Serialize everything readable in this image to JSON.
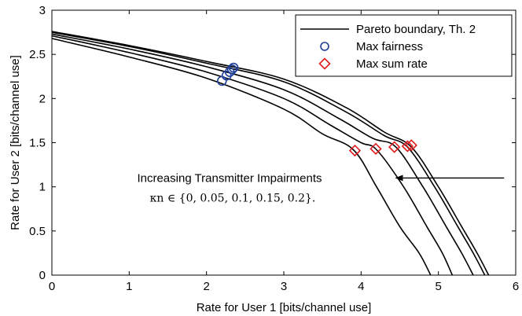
{
  "chart_data": {
    "type": "line",
    "title": "",
    "xlabel": "Rate for User 1 [bits/channel use]",
    "ylabel": "Rate for User 2 [bits/channel use]",
    "xlim": [
      0,
      6
    ],
    "ylim": [
      0,
      3
    ],
    "xticks": [
      0,
      1,
      2,
      3,
      4,
      5,
      6
    ],
    "yticks": [
      0,
      0.5,
      1,
      1.5,
      2,
      2.5,
      3
    ],
    "xtick_labels": [
      "0",
      "1",
      "2",
      "3",
      "4",
      "5",
      "6"
    ],
    "ytick_labels": [
      "0",
      "0.5",
      "1",
      "1.5",
      "2",
      "2.5",
      "3"
    ],
    "grid": false,
    "legend_position": "top-right",
    "legend": [
      {
        "label": "Pareto boundary, Th. 2",
        "marker": "line",
        "color": "#000000"
      },
      {
        "label": "Max fairness",
        "marker": "circle",
        "color": "#1f3f99"
      },
      {
        "label": "Max sum rate",
        "marker": "diamond",
        "color": "#e31a1c"
      }
    ],
    "series": [
      {
        "kappa": 0,
        "points": [
          [
            0,
            2.76
          ],
          [
            1,
            2.6
          ],
          [
            2,
            2.42
          ],
          [
            3,
            2.22
          ],
          [
            3.8,
            1.9
          ],
          [
            4.3,
            1.62
          ],
          [
            4.65,
            1.45
          ],
          [
            5.0,
            1.0
          ],
          [
            5.3,
            0.55
          ],
          [
            5.5,
            0.25
          ],
          [
            5.65,
            0
          ]
        ]
      },
      {
        "kappa": 0.05,
        "points": [
          [
            0,
            2.75
          ],
          [
            1,
            2.59
          ],
          [
            2,
            2.4
          ],
          [
            3,
            2.19
          ],
          [
            3.8,
            1.85
          ],
          [
            4.3,
            1.58
          ],
          [
            4.6,
            1.45
          ],
          [
            4.95,
            1.0
          ],
          [
            5.25,
            0.55
          ],
          [
            5.45,
            0.25
          ],
          [
            5.6,
            0
          ]
        ]
      },
      {
        "kappa": 0.1,
        "points": [
          [
            0,
            2.73
          ],
          [
            1,
            2.56
          ],
          [
            2,
            2.36
          ],
          [
            3,
            2.1
          ],
          [
            3.7,
            1.78
          ],
          [
            4.15,
            1.55
          ],
          [
            4.45,
            1.45
          ],
          [
            4.8,
            1.0
          ],
          [
            5.1,
            0.55
          ],
          [
            5.3,
            0.25
          ],
          [
            5.45,
            0
          ]
        ]
      },
      {
        "kappa": 0.15,
        "points": [
          [
            0,
            2.71
          ],
          [
            1,
            2.52
          ],
          [
            2,
            2.3
          ],
          [
            3,
            2.0
          ],
          [
            3.6,
            1.7
          ],
          [
            4.0,
            1.5
          ],
          [
            4.2,
            1.42
          ],
          [
            4.55,
            1.0
          ],
          [
            4.85,
            0.55
          ],
          [
            5.05,
            0.25
          ],
          [
            5.18,
            0
          ]
        ]
      },
      {
        "kappa": 0.2,
        "points": [
          [
            0,
            2.68
          ],
          [
            1,
            2.47
          ],
          [
            2,
            2.23
          ],
          [
            3,
            1.88
          ],
          [
            3.5,
            1.6
          ],
          [
            3.9,
            1.42
          ],
          [
            4.2,
            1.0
          ],
          [
            4.5,
            0.55
          ],
          [
            4.75,
            0.25
          ],
          [
            4.9,
            0
          ]
        ]
      }
    ],
    "max_fairness": [
      [
        2.35,
        2.35
      ],
      [
        2.33,
        2.33
      ],
      [
        2.3,
        2.3
      ],
      [
        2.26,
        2.26
      ],
      [
        2.2,
        2.2
      ]
    ],
    "max_sum_rate": [
      [
        4.65,
        1.47
      ],
      [
        4.6,
        1.46
      ],
      [
        4.43,
        1.45
      ],
      [
        4.19,
        1.43
      ],
      [
        3.92,
        1.41
      ]
    ],
    "annotation": {
      "text": "Increasing Transmitter Impairments",
      "math": "κn ∈ {0, 0.05, 0.1, 0.15, 0.2}.",
      "arrow_from": [
        5.85,
        1.1
      ],
      "arrow_to": [
        4.45,
        1.1
      ]
    }
  }
}
